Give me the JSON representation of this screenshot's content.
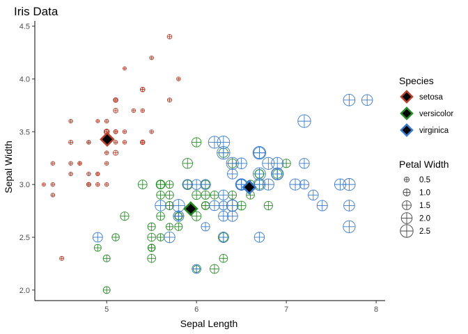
{
  "chart_data": {
    "type": "scatter",
    "title": "Iris Data",
    "xlabel": "Sepal Length",
    "ylabel": "Sepal Width",
    "xlim": [
      4.2,
      8.1
    ],
    "ylim": [
      1.9,
      4.55
    ],
    "x_ticks": [
      5,
      6,
      7,
      8
    ],
    "y_ticks": [
      2.0,
      2.5,
      3.0,
      3.5,
      4.0,
      4.5
    ],
    "x_tick_labels": [
      "5",
      "6",
      "7",
      "8"
    ],
    "y_tick_labels": [
      "2.0",
      "2.5",
      "3.0",
      "3.5",
      "4.0",
      "4.5"
    ],
    "grid": false,
    "color_legend": {
      "title": "Species",
      "entries": [
        {
          "label": "setosa",
          "color": "#b5412e"
        },
        {
          "label": "versicolor",
          "color": "#2a8a2a"
        },
        {
          "label": "virginica",
          "color": "#3a7ac8"
        }
      ]
    },
    "size_legend": {
      "title": "Petal Width",
      "entries": [
        {
          "label": "0.5",
          "value": 0.5
        },
        {
          "label": "1.0",
          "value": 1.0
        },
        {
          "label": "1.5",
          "value": 1.5
        },
        {
          "label": "2.0",
          "value": 2.0
        },
        {
          "label": "2.5",
          "value": 2.5
        }
      ]
    },
    "centroids": [
      {
        "species": "setosa",
        "x": 5.006,
        "y": 3.428
      },
      {
        "species": "versicolor",
        "x": 5.936,
        "y": 2.77
      },
      {
        "species": "virginica",
        "x": 6.588,
        "y": 2.974
      }
    ],
    "series": [
      {
        "name": "setosa",
        "color": "#b5412e",
        "points": [
          [
            5.1,
            3.5,
            0.2
          ],
          [
            4.9,
            3.0,
            0.2
          ],
          [
            4.7,
            3.2,
            0.2
          ],
          [
            4.6,
            3.1,
            0.2
          ],
          [
            5.0,
            3.6,
            0.2
          ],
          [
            5.4,
            3.9,
            0.4
          ],
          [
            4.6,
            3.4,
            0.3
          ],
          [
            5.0,
            3.4,
            0.2
          ],
          [
            4.4,
            2.9,
            0.2
          ],
          [
            4.9,
            3.1,
            0.1
          ],
          [
            5.4,
            3.7,
            0.2
          ],
          [
            4.8,
            3.4,
            0.2
          ],
          [
            4.8,
            3.0,
            0.1
          ],
          [
            4.3,
            3.0,
            0.1
          ],
          [
            5.8,
            4.0,
            0.2
          ],
          [
            5.7,
            4.4,
            0.4
          ],
          [
            5.4,
            3.9,
            0.4
          ],
          [
            5.1,
            3.5,
            0.3
          ],
          [
            5.7,
            3.8,
            0.3
          ],
          [
            5.1,
            3.8,
            0.3
          ],
          [
            5.4,
            3.4,
            0.2
          ],
          [
            5.1,
            3.7,
            0.4
          ],
          [
            4.6,
            3.6,
            0.2
          ],
          [
            5.1,
            3.3,
            0.5
          ],
          [
            4.8,
            3.4,
            0.2
          ],
          [
            5.0,
            3.0,
            0.2
          ],
          [
            5.0,
            3.4,
            0.4
          ],
          [
            5.2,
            3.5,
            0.2
          ],
          [
            5.2,
            3.4,
            0.2
          ],
          [
            4.7,
            3.2,
            0.2
          ],
          [
            4.8,
            3.1,
            0.2
          ],
          [
            5.4,
            3.4,
            0.4
          ],
          [
            5.2,
            4.1,
            0.1
          ],
          [
            5.5,
            4.2,
            0.2
          ],
          [
            4.9,
            3.1,
            0.2
          ],
          [
            5.0,
            3.2,
            0.2
          ],
          [
            5.5,
            3.5,
            0.2
          ],
          [
            4.9,
            3.6,
            0.1
          ],
          [
            4.4,
            3.0,
            0.2
          ],
          [
            5.1,
            3.4,
            0.2
          ],
          [
            5.0,
            3.5,
            0.3
          ],
          [
            4.5,
            2.3,
            0.3
          ],
          [
            4.4,
            3.2,
            0.2
          ],
          [
            5.0,
            3.5,
            0.6
          ],
          [
            5.1,
            3.8,
            0.4
          ],
          [
            4.8,
            3.0,
            0.3
          ],
          [
            5.1,
            3.8,
            0.2
          ],
          [
            4.6,
            3.2,
            0.2
          ],
          [
            5.3,
            3.7,
            0.2
          ],
          [
            5.0,
            3.3,
            0.2
          ]
        ]
      },
      {
        "name": "versicolor",
        "color": "#2a8a2a",
        "points": [
          [
            7.0,
            3.2,
            1.4
          ],
          [
            6.4,
            3.2,
            1.5
          ],
          [
            6.9,
            3.1,
            1.5
          ],
          [
            5.5,
            2.3,
            1.3
          ],
          [
            6.5,
            2.8,
            1.5
          ],
          [
            5.7,
            2.8,
            1.3
          ],
          [
            6.3,
            3.3,
            1.6
          ],
          [
            4.9,
            2.4,
            1.0
          ],
          [
            6.6,
            2.9,
            1.3
          ],
          [
            5.2,
            2.7,
            1.4
          ],
          [
            5.0,
            2.0,
            1.0
          ],
          [
            5.9,
            3.0,
            1.5
          ],
          [
            6.0,
            2.2,
            1.0
          ],
          [
            6.1,
            2.9,
            1.4
          ],
          [
            5.6,
            2.9,
            1.3
          ],
          [
            6.7,
            3.1,
            1.4
          ],
          [
            5.6,
            3.0,
            1.5
          ],
          [
            5.8,
            2.7,
            1.0
          ],
          [
            6.2,
            2.2,
            1.5
          ],
          [
            5.6,
            2.5,
            1.1
          ],
          [
            5.9,
            3.2,
            1.8
          ],
          [
            6.1,
            2.8,
            1.3
          ],
          [
            6.3,
            2.5,
            1.5
          ],
          [
            6.1,
            2.8,
            1.2
          ],
          [
            6.4,
            2.9,
            1.3
          ],
          [
            6.6,
            3.0,
            1.4
          ],
          [
            6.8,
            2.8,
            1.4
          ],
          [
            6.7,
            3.0,
            1.7
          ],
          [
            6.0,
            2.9,
            1.5
          ],
          [
            5.7,
            2.6,
            1.0
          ],
          [
            5.5,
            2.4,
            1.1
          ],
          [
            5.5,
            2.4,
            1.0
          ],
          [
            5.8,
            2.7,
            1.2
          ],
          [
            6.0,
            2.7,
            1.6
          ],
          [
            5.4,
            3.0,
            1.5
          ],
          [
            6.0,
            3.4,
            1.6
          ],
          [
            6.7,
            3.1,
            1.5
          ],
          [
            6.3,
            2.3,
            1.3
          ],
          [
            5.6,
            3.0,
            1.3
          ],
          [
            5.5,
            2.5,
            1.3
          ],
          [
            5.5,
            2.6,
            1.2
          ],
          [
            6.1,
            3.0,
            1.4
          ],
          [
            5.8,
            2.6,
            1.2
          ],
          [
            5.0,
            2.3,
            1.0
          ],
          [
            5.6,
            2.7,
            1.3
          ],
          [
            5.7,
            3.0,
            1.2
          ],
          [
            5.7,
            2.9,
            1.3
          ],
          [
            6.2,
            2.9,
            1.3
          ],
          [
            5.1,
            2.5,
            1.1
          ],
          [
            5.7,
            2.8,
            1.3
          ]
        ]
      },
      {
        "name": "virginica",
        "color": "#3a7ac8",
        "points": [
          [
            6.3,
            3.3,
            2.5
          ],
          [
            5.8,
            2.7,
            1.9
          ],
          [
            7.1,
            3.0,
            2.1
          ],
          [
            6.3,
            2.9,
            1.8
          ],
          [
            6.5,
            3.0,
            2.2
          ],
          [
            7.6,
            3.0,
            2.1
          ],
          [
            4.9,
            2.5,
            1.7
          ],
          [
            7.3,
            2.9,
            1.8
          ],
          [
            6.7,
            2.5,
            1.8
          ],
          [
            7.2,
            3.6,
            2.5
          ],
          [
            6.5,
            3.2,
            2.0
          ],
          [
            6.4,
            2.7,
            1.9
          ],
          [
            6.8,
            3.0,
            2.1
          ],
          [
            5.7,
            2.5,
            2.0
          ],
          [
            5.8,
            2.8,
            2.4
          ],
          [
            6.4,
            3.2,
            2.3
          ],
          [
            6.5,
            3.0,
            1.8
          ],
          [
            7.7,
            3.8,
            2.2
          ],
          [
            7.7,
            2.6,
            2.3
          ],
          [
            6.0,
            2.2,
            1.5
          ],
          [
            6.9,
            3.2,
            2.3
          ],
          [
            5.6,
            2.8,
            2.0
          ],
          [
            7.7,
            2.8,
            2.0
          ],
          [
            6.3,
            2.7,
            1.8
          ],
          [
            6.7,
            3.3,
            2.1
          ],
          [
            7.2,
            3.2,
            1.8
          ],
          [
            6.2,
            2.8,
            1.8
          ],
          [
            6.1,
            3.0,
            1.8
          ],
          [
            6.4,
            2.8,
            2.1
          ],
          [
            7.2,
            3.0,
            1.6
          ],
          [
            7.4,
            2.8,
            1.9
          ],
          [
            7.9,
            3.8,
            2.0
          ],
          [
            6.4,
            2.8,
            2.2
          ],
          [
            6.3,
            2.8,
            1.5
          ],
          [
            6.1,
            2.6,
            1.4
          ],
          [
            7.7,
            3.0,
            2.3
          ],
          [
            6.3,
            3.4,
            2.4
          ],
          [
            6.4,
            3.1,
            1.8
          ],
          [
            6.0,
            3.0,
            1.8
          ],
          [
            6.9,
            3.1,
            2.1
          ],
          [
            6.7,
            3.1,
            2.4
          ],
          [
            6.9,
            3.1,
            2.3
          ],
          [
            5.8,
            2.7,
            1.9
          ],
          [
            6.8,
            3.2,
            2.3
          ],
          [
            6.7,
            3.3,
            2.5
          ],
          [
            6.7,
            3.0,
            2.3
          ],
          [
            6.3,
            2.5,
            1.9
          ],
          [
            6.5,
            3.0,
            2.0
          ],
          [
            6.2,
            3.4,
            2.3
          ],
          [
            5.9,
            3.0,
            1.8
          ]
        ]
      }
    ]
  }
}
